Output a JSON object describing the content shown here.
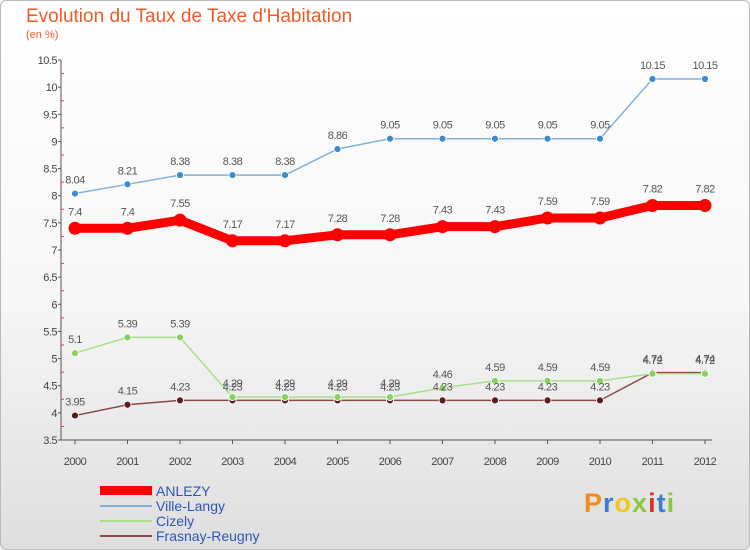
{
  "title": "Evolution du Taux de Taxe d'Habitation",
  "subtitle": "(en %)",
  "chart_data": {
    "type": "line",
    "x": [
      "2000",
      "2001",
      "2002",
      "2003",
      "2004",
      "2005",
      "2006",
      "2007",
      "2008",
      "2009",
      "2010",
      "2011",
      "2012"
    ],
    "y_ticks": [
      "3.5",
      "4",
      "4.5",
      "5",
      "5.5",
      "6",
      "6.5",
      "7",
      "7.5",
      "8",
      "8.5",
      "9",
      "9.5",
      "10",
      "10.5"
    ],
    "ylim": [
      3.5,
      10.5
    ],
    "grid": false,
    "legend_position": "bottom-left",
    "series": [
      {
        "name": "ANLEZY",
        "color": "#ff0000",
        "values": [
          7.4,
          7.4,
          7.55,
          7.17,
          7.17,
          7.28,
          7.28,
          7.43,
          7.43,
          7.59,
          7.59,
          7.82,
          7.82
        ],
        "labels": [
          "7.4",
          "7.4",
          "7.55",
          "7.17",
          "7.17",
          "7.28",
          "7.28",
          "7.43",
          "7.43",
          "7.59",
          "7.59",
          "7.82",
          "7.82"
        ]
      },
      {
        "name": "Ville-Langy",
        "color": "#84b0d8",
        "marker_color": "#3d8bcf",
        "values": [
          8.04,
          8.21,
          8.38,
          8.38,
          8.38,
          8.86,
          9.05,
          9.05,
          9.05,
          9.05,
          9.05,
          10.15,
          10.15
        ],
        "labels": [
          "8.04",
          "8.21",
          "8.38",
          "8.38",
          "8.38",
          "8.86",
          "9.05",
          "9.05",
          "9.05",
          "9.05",
          "9.05",
          "10.15",
          "10.15"
        ]
      },
      {
        "name": "Cizely",
        "color": "#a8e08a",
        "marker_color": "#86d25a",
        "values": [
          5.1,
          5.39,
          5.39,
          4.29,
          4.29,
          4.29,
          4.29,
          4.46,
          4.59,
          4.59,
          4.59,
          4.72,
          4.72
        ],
        "labels": [
          "5.1",
          "5.39",
          "5.39",
          "4.29",
          "4.29",
          "4.29",
          "4.29",
          "4.46",
          "4.59",
          "4.59",
          "4.59",
          "4.72",
          "4.72"
        ]
      },
      {
        "name": "Frasnay-Reugny",
        "color": "#8a4a4a",
        "marker_color": "#5a1e1e",
        "values": [
          3.95,
          4.15,
          4.23,
          4.23,
          4.23,
          4.23,
          4.23,
          4.23,
          4.23,
          4.23,
          4.23,
          4.74,
          4.74
        ],
        "labels": [
          "3.95",
          "4.15",
          "4.23",
          "4.23",
          "4.23",
          "4.23",
          "4.23",
          "4.23",
          "4.23",
          "4.23",
          "4.23",
          "4.74",
          "4.74"
        ]
      }
    ]
  },
  "logo": {
    "letters": [
      "P",
      "r",
      "o",
      "x",
      "i",
      "t",
      "i"
    ],
    "colors": [
      "#f28c1e",
      "#3a7fd0",
      "#f2c81e",
      "#8cc63f",
      "#e0302a",
      "#3a7fd0",
      "#8cc63f"
    ]
  }
}
